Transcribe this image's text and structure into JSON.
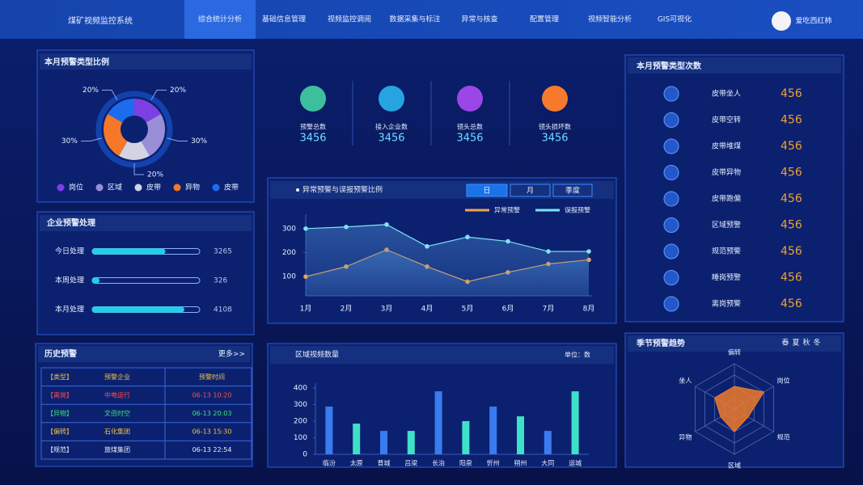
{
  "header": {
    "title": "煤矿视频监控系统",
    "nav": [
      "综合统计分析",
      "基础信息管理",
      "视频监控调阅",
      "数据采集与标注",
      "异常与核查",
      "配置管理",
      "视频智能分析",
      "GIS可视化"
    ],
    "user": "爱吃西红柿"
  },
  "stats": [
    {
      "label": "预警总数",
      "value": 3456
    },
    {
      "label": "接入企业数",
      "value": 3456
    },
    {
      "label": "镜头总数",
      "value": 3456
    },
    {
      "label": "镜头损坏数",
      "value": 3456
    }
  ],
  "type_counts": {
    "title": "本月预警类型次数",
    "items": [
      {
        "name": "皮带坐人",
        "value": 456
      },
      {
        "name": "皮带空转",
        "value": 456
      },
      {
        "name": "皮带堆煤",
        "value": 456
      },
      {
        "name": "皮带异物",
        "value": 456
      },
      {
        "name": "皮带跑偏",
        "value": 456
      },
      {
        "name": "区域预警",
        "value": 456
      },
      {
        "name": "规范预警",
        "value": 456
      },
      {
        "name": "睡岗预警",
        "value": 456
      },
      {
        "name": "离岗预警",
        "value": 456
      }
    ]
  },
  "history": {
    "title": "历史预警",
    "more": "更多>>",
    "header": [
      "【类型】",
      "预警企业",
      "预警时间"
    ],
    "rows": [
      [
        "【离岗】",
        "中电运行",
        "06-13 10:20"
      ],
      [
        "【异物】",
        "文佰时空",
        "06-13 20:03"
      ],
      [
        "【偏转】",
        "石化集团",
        "06-13 15:30"
      ],
      [
        "【规范】",
        "旅煤集团",
        "06-13 22:54"
      ]
    ]
  },
  "chart_data": [
    {
      "type": "donut",
      "title": "本月预警类型比例",
      "categories": [
        "岗位",
        "区域",
        "皮带",
        "异物",
        "皮带"
      ],
      "values": [
        20,
        30,
        20,
        30,
        20
      ],
      "value_labels": [
        "20%",
        "30%",
        "20%",
        "30%",
        "20%"
      ],
      "colors": [
        "#7b3fe4",
        "#9a8ed8",
        "#d2d4e2",
        "#f5782a",
        "#1c6cf0"
      ]
    },
    {
      "type": "hbar",
      "title": "企业预警处理",
      "categories": [
        "今日处理",
        "本周处理",
        "本月处理"
      ],
      "values": [
        3265,
        326,
        4108
      ],
      "xlim": [
        0,
        4800
      ],
      "color": "#19d3e6"
    },
    {
      "type": "line",
      "title": "异常预警与误报预警比例",
      "tabs": [
        "日",
        "月",
        "季度"
      ],
      "categories": [
        "1月",
        "2月",
        "3月",
        "4月",
        "5月",
        "6月",
        "7月",
        "8月"
      ],
      "series": [
        {
          "name": "异常预警",
          "color": "#f0a550",
          "values": [
            100,
            142,
            212,
            142,
            79,
            118,
            153,
            170
          ]
        },
        {
          "name": "误报预警",
          "color": "#7fe3f5",
          "values": [
            300,
            307,
            317,
            226,
            265,
            247,
            205,
            205
          ]
        }
      ],
      "ylim": [
        20,
        360
      ],
      "yticks": [
        100,
        200,
        300
      ]
    },
    {
      "type": "bar",
      "title": "区域视频数量",
      "unit": "单位：数",
      "categories": [
        "临汾",
        "太原",
        "晋城",
        "吕梁",
        "长治",
        "阳泉",
        "忻州",
        "朔州",
        "大同",
        "运城"
      ],
      "values": [
        288,
        185,
        141,
        141,
        380,
        200,
        288,
        229,
        141,
        380
      ],
      "colors": [
        "#3a7cf0",
        "#3fe0c8"
      ],
      "ylim": [
        0,
        400
      ],
      "yticks": [
        0,
        100,
        200,
        300,
        400
      ]
    },
    {
      "type": "radar",
      "title": "季节预警趋势",
      "tabs": [
        "春",
        "夏",
        "秋",
        "冬"
      ],
      "categories": [
        "偏转",
        "岗位",
        "规范",
        "区域",
        "异物",
        "坐人"
      ],
      "values": [
        50,
        75,
        35,
        50,
        35,
        50
      ],
      "rlim": [
        0,
        100
      ],
      "color": "#f07a2c"
    }
  ]
}
